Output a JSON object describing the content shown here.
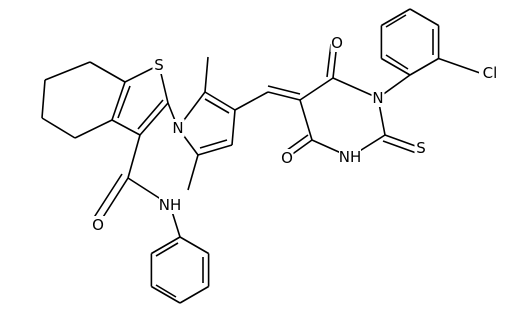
{
  "atoms": [
    {
      "label": "S"
    },
    {
      "label": "N"
    },
    {
      "label": "O"
    },
    {
      "label": "NH"
    },
    {
      "label": "O"
    },
    {
      "label": "N"
    },
    {
      "label": "Cl"
    },
    {
      "label": "O"
    },
    {
      "label": "NH"
    },
    {
      "label": "S"
    }
  ]
}
